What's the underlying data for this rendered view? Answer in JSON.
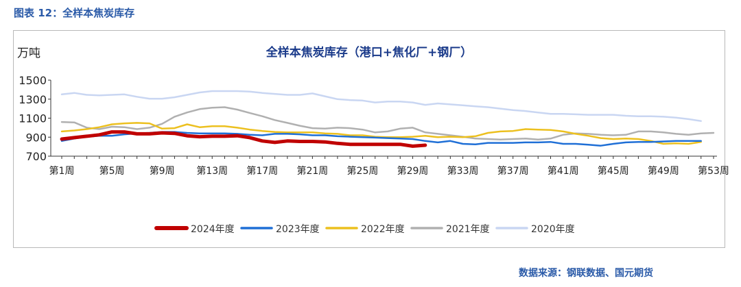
{
  "figure_label": "图表 12：全样本焦炭库存",
  "source_note": "数据来源：钢联数据、国元期货",
  "colors": {
    "2024年度": "#c00000",
    "2023年度": "#1f6fd6",
    "2022年度": "#ecc01f",
    "2021年度": "#b0b0b0",
    "2020年度": "#c9d6f2"
  },
  "chart_data": {
    "type": "line",
    "title": "全样本焦炭库存（港口+焦化厂+钢厂）",
    "ylabel": "万吨",
    "xlabel": "",
    "ylim": [
      700,
      1500
    ],
    "yticks": [
      700,
      900,
      1100,
      1300,
      1500
    ],
    "yticklabels": [
      "700",
      "900",
      "1100",
      "1300",
      "1500"
    ],
    "xticklabels": [
      "第1周",
      "第5周",
      "第9周",
      "第13周",
      "第17周",
      "第21周",
      "第25周",
      "第29周",
      "第33周",
      "第37周",
      "第41周",
      "第45周",
      "第49周",
      "第53周"
    ],
    "xtick_weeks": [
      1,
      5,
      9,
      13,
      17,
      21,
      25,
      29,
      33,
      37,
      41,
      45,
      49,
      53
    ],
    "legend_position": "bottom",
    "grid": false,
    "series": [
      {
        "name": "2024年度",
        "color_key": "2024年度",
        "stroke_width": 5,
        "x": [
          1,
          2,
          3,
          4,
          5,
          6,
          7,
          8,
          9,
          10,
          11,
          12,
          13,
          14,
          15,
          16,
          17,
          18,
          19,
          20,
          21,
          22,
          23,
          24,
          25,
          26,
          27,
          28,
          29,
          30
        ],
        "values": [
          880,
          895,
          910,
          925,
          955,
          955,
          935,
          935,
          945,
          940,
          915,
          905,
          910,
          910,
          915,
          895,
          860,
          845,
          860,
          855,
          855,
          850,
          835,
          825,
          825,
          825,
          825,
          825,
          805,
          815
        ]
      },
      {
        "name": "2023年度",
        "color_key": "2023年度",
        "stroke_width": 2.5,
        "x": [
          1,
          2,
          3,
          4,
          5,
          6,
          7,
          8,
          9,
          10,
          11,
          12,
          13,
          14,
          15,
          16,
          17,
          18,
          19,
          20,
          21,
          22,
          23,
          24,
          25,
          26,
          27,
          28,
          29,
          30,
          31,
          32,
          33,
          34,
          35,
          36,
          37,
          38,
          39,
          40,
          41,
          42,
          43,
          44,
          45,
          46,
          47,
          48,
          49,
          50,
          51,
          52
        ],
        "values": [
          860,
          885,
          905,
          915,
          915,
          930,
          940,
          945,
          955,
          955,
          945,
          940,
          940,
          940,
          935,
          925,
          920,
          935,
          935,
          930,
          920,
          920,
          910,
          905,
          900,
          895,
          890,
          885,
          880,
          860,
          845,
          860,
          830,
          825,
          840,
          840,
          840,
          845,
          845,
          850,
          830,
          830,
          820,
          810,
          830,
          845,
          850,
          850,
          855,
          860,
          860,
          860
        ]
      },
      {
        "name": "2022年度",
        "color_key": "2022年度",
        "stroke_width": 2.5,
        "x": [
          1,
          2,
          3,
          4,
          5,
          6,
          7,
          8,
          9,
          10,
          11,
          12,
          13,
          14,
          15,
          16,
          17,
          18,
          19,
          20,
          21,
          22,
          23,
          24,
          25,
          26,
          27,
          28,
          29,
          30,
          31,
          32,
          33,
          34,
          35,
          36,
          37,
          38,
          39,
          40,
          41,
          42,
          43,
          44,
          45,
          46,
          47,
          48,
          49,
          50,
          51,
          52
        ],
        "values": [
          960,
          970,
          985,
          1005,
          1035,
          1045,
          1050,
          1045,
          990,
          995,
          1035,
          1005,
          1015,
          1015,
          1000,
          980,
          965,
          955,
          950,
          950,
          950,
          940,
          935,
          920,
          920,
          905,
          900,
          900,
          905,
          915,
          900,
          905,
          900,
          910,
          945,
          960,
          965,
          985,
          980,
          975,
          960,
          935,
          915,
          890,
          880,
          885,
          880,
          860,
          830,
          835,
          830,
          850
        ]
      },
      {
        "name": "2021年度",
        "color_key": "2021年度",
        "stroke_width": 2.5,
        "x": [
          1,
          2,
          3,
          4,
          5,
          6,
          7,
          8,
          9,
          10,
          11,
          12,
          13,
          14,
          15,
          16,
          17,
          18,
          19,
          20,
          21,
          22,
          23,
          24,
          25,
          26,
          27,
          28,
          29,
          30,
          31,
          32,
          33,
          34,
          35,
          36,
          37,
          38,
          39,
          40,
          41,
          42,
          43,
          44,
          45,
          46,
          47,
          48,
          49,
          50,
          51,
          52,
          53
        ],
        "values": [
          1060,
          1055,
          1000,
          985,
          1010,
          1005,
          985,
          1000,
          1040,
          1115,
          1160,
          1195,
          1210,
          1215,
          1190,
          1155,
          1120,
          1080,
          1050,
          1020,
          995,
          990,
          1000,
          995,
          980,
          950,
          960,
          990,
          1000,
          950,
          935,
          920,
          905,
          885,
          880,
          875,
          880,
          885,
          875,
          885,
          925,
          940,
          935,
          925,
          920,
          925,
          960,
          960,
          950,
          935,
          925,
          940,
          945
        ]
      },
      {
        "name": "2020年度",
        "color_key": "2020年度",
        "stroke_width": 2.5,
        "x": [
          1,
          2,
          3,
          4,
          5,
          6,
          7,
          8,
          9,
          10,
          11,
          12,
          13,
          14,
          15,
          16,
          17,
          18,
          19,
          20,
          21,
          22,
          23,
          24,
          25,
          26,
          27,
          28,
          29,
          30,
          31,
          32,
          33,
          34,
          35,
          36,
          37,
          38,
          39,
          40,
          41,
          42,
          43,
          44,
          45,
          46,
          47,
          48,
          49,
          50,
          51,
          52
        ],
        "values": [
          1350,
          1365,
          1345,
          1340,
          1345,
          1350,
          1325,
          1305,
          1305,
          1320,
          1345,
          1370,
          1385,
          1385,
          1385,
          1380,
          1365,
          1355,
          1345,
          1345,
          1360,
          1330,
          1300,
          1290,
          1285,
          1265,
          1275,
          1275,
          1265,
          1240,
          1255,
          1245,
          1235,
          1225,
          1215,
          1200,
          1185,
          1175,
          1160,
          1145,
          1145,
          1140,
          1135,
          1135,
          1135,
          1125,
          1120,
          1120,
          1115,
          1105,
          1090,
          1070
        ]
      }
    ]
  }
}
